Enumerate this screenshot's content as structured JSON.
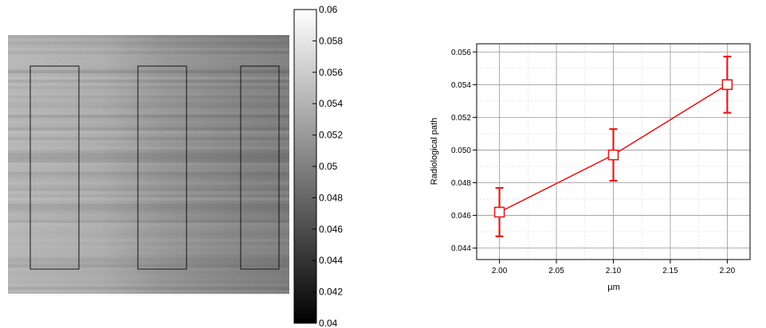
{
  "chart_data": [
    {
      "type": "heatmap",
      "colorbar": {
        "min": 0.04,
        "max": 0.06,
        "ticks": [
          "0.04",
          "0.042",
          "0.044",
          "0.046",
          "0.048",
          "0.05",
          "0.052",
          "0.054",
          "0.056",
          "0.058",
          "0.06"
        ],
        "colormap": "gray"
      },
      "regions_of_interest": 3,
      "note_colors": {
        "roi_outline": "#000000"
      }
    },
    {
      "type": "line",
      "xlabel": "µm",
      "ylabel": "Radiological path",
      "xlim": [
        1.98,
        2.22
      ],
      "ylim": [
        0.0433,
        0.0565
      ],
      "xticks": [
        "2.00",
        "2.05",
        "2.10",
        "2.15",
        "2.20"
      ],
      "yticks": [
        "0.044",
        "0.046",
        "0.048",
        "0.050",
        "0.052",
        "0.054",
        "0.056"
      ],
      "grid": true,
      "series": [
        {
          "x": [
            2.0,
            2.1,
            2.2
          ],
          "y": [
            0.0462,
            0.0497,
            0.054
          ],
          "yerr": [
            0.00148,
            0.00158,
            0.00172
          ],
          "color": "#e8191b",
          "marker": "square-open"
        }
      ]
    }
  ]
}
